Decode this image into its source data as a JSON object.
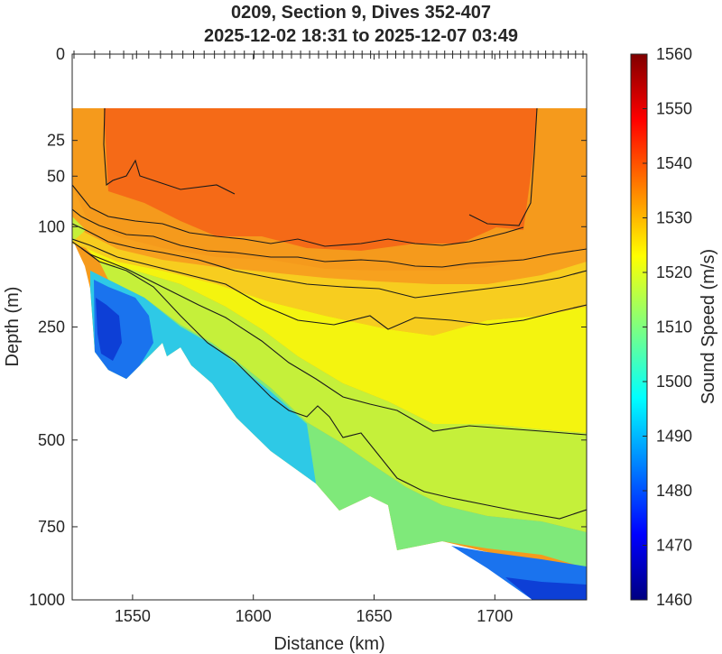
{
  "chart_data": {
    "type": "heatmap",
    "title": "0209, Section 9, Dives 352-407",
    "subtitle": "2025-12-02 18:31 to 2025-12-07 03:49",
    "xlabel": "Distance (km)",
    "ylabel": "Depth (m)",
    "colorbar_label": "Sound Speed (m/s)",
    "xlim": [
      1525,
      1738
    ],
    "ylim": [
      0,
      1000
    ],
    "y_scale": "sqrt",
    "x_ticks": [
      "1550",
      "1600",
      "1650",
      "1700"
    ],
    "y_ticks": [
      "0",
      "25",
      "50",
      "100",
      "250",
      "500",
      "750",
      "1000"
    ],
    "colorbar_range": [
      1460,
      1560
    ],
    "colorbar_ticks": [
      "1460",
      "1470",
      "1480",
      "1490",
      "1500",
      "1510",
      "1520",
      "1530",
      "1540",
      "1550",
      "1560"
    ],
    "colormap": "jet",
    "contour_interval": 5,
    "dive_count": 56,
    "data_top_depth_m": 15,
    "colors": {
      "surface": "#f59a1c",
      "core": "#f56a17",
      "upper": "#f7a11e",
      "mid_upper": "#f7cd1f",
      "mid": "#f4f40f",
      "lower_mid": "#c5f03a",
      "lower": "#7fe97a",
      "deep": "#2ec9e6",
      "deepest": "#1a73ee",
      "coldest": "#0d3fd6",
      "contour": "#1a1a1a",
      "axis": "#262626"
    }
  }
}
